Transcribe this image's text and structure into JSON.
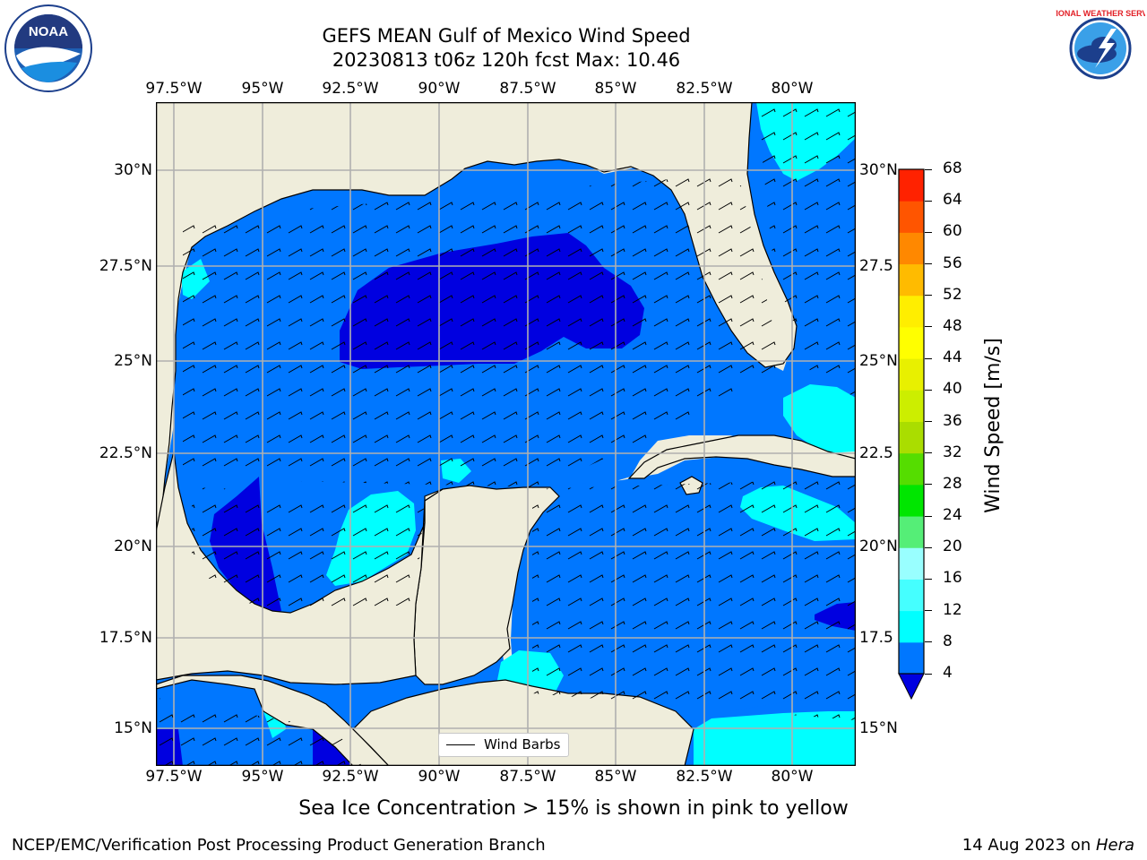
{
  "title": {
    "line1": "GEFS MEAN Gulf of Mexico Wind Speed",
    "line2": "20230813 t06z 120h fcst   Max: 10.46"
  },
  "logos": {
    "left": {
      "icon": "noaa-logo",
      "text": "NOAA"
    },
    "right": {
      "icon": "nws-logo",
      "text": "NATIONAL WEATHER SERVICE"
    }
  },
  "map": {
    "lon_ticks": [
      "97.5°W",
      "95°W",
      "92.5°W",
      "90°W",
      "87.5°W",
      "85°W",
      "82.5°W",
      "80°W"
    ],
    "lat_ticks_left": [
      "30°N",
      "27.5°N",
      "25°N",
      "22.5°N",
      "20°N",
      "17.5°N",
      "15°N"
    ],
    "lat_ticks_right": [
      "30°N",
      "27.5",
      "25°N",
      "22.5",
      "20°N",
      "17.5",
      "15°N"
    ],
    "lon_range": [
      -98,
      -78.25
    ],
    "lat_range": [
      14,
      31.8
    ],
    "legend": "Wind Barbs",
    "colors": {
      "land": "#efeddb",
      "wind_4_8": "#0077ff",
      "wind_8_12": "#00ffff",
      "wind_below_4": "#0000e0",
      "grid": "#b0b0b0"
    }
  },
  "colorbar": {
    "label": "Wind Speed [m/s]",
    "ticks": [
      "4",
      "8",
      "12",
      "16",
      "20",
      "24",
      "28",
      "32",
      "36",
      "40",
      "44",
      "48",
      "52",
      "56",
      "60",
      "64",
      "68"
    ],
    "colors": [
      "#0077ff",
      "#00ffff",
      "#45ffff",
      "#99ffff",
      "#55ee77",
      "#00e600",
      "#55dd00",
      "#aadd00",
      "#ccee00",
      "#e8f000",
      "#ffff00",
      "#ffee00",
      "#ffbb00",
      "#ff8800",
      "#ff5500",
      "#ff2200"
    ],
    "extend_color": "#0000e0"
  },
  "caption": "Sea Ice Concentration > 15% is shown in pink to yellow",
  "footer": {
    "left": "NCEP/EMC/Verification Post Processing Product Generation Branch",
    "right_date": "14 Aug 2023 on ",
    "right_host": "Hera"
  }
}
